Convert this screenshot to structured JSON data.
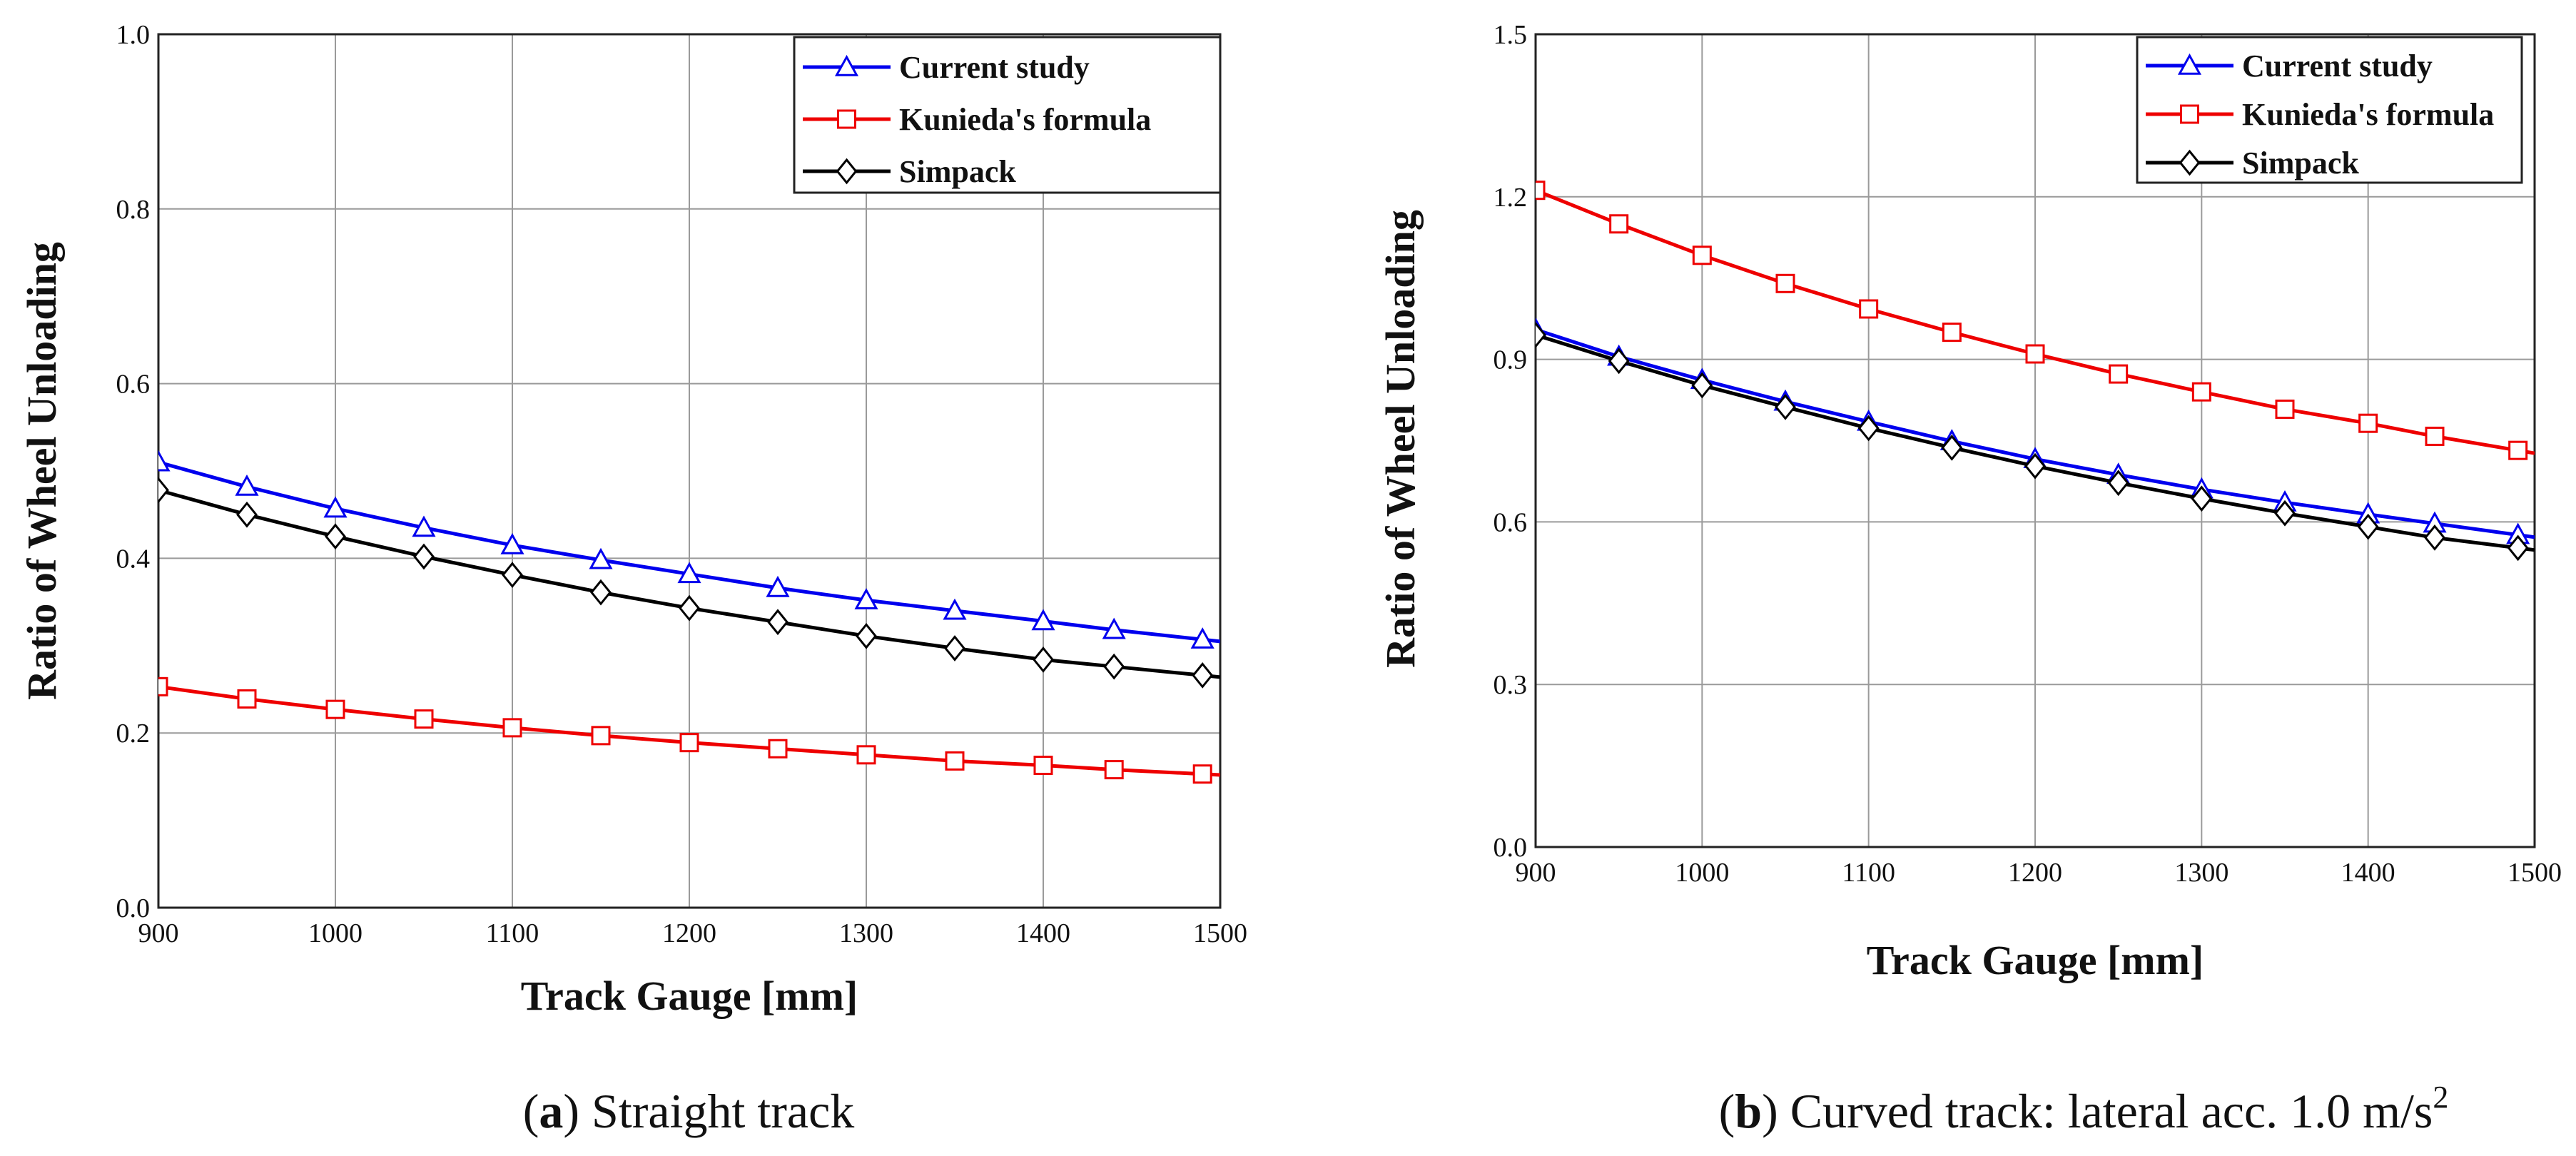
{
  "chart_data": [
    {
      "type": "line",
      "caption": {
        "letter": "a",
        "text": "Straight track"
      },
      "xlabel": "Track Gauge [mm]",
      "ylabel": "Ratio of Wheel Unloading",
      "xlim": [
        900,
        1500
      ],
      "ylim": [
        0.0,
        1.0
      ],
      "xticks": [
        900,
        1000,
        1100,
        1200,
        1300,
        1400,
        1500
      ],
      "yticks": [
        0.0,
        0.2,
        0.4,
        0.6,
        0.8,
        1.0
      ],
      "ytick_labels": [
        "0.0",
        "0.2",
        "0.4",
        "0.6",
        "0.8",
        "1.0"
      ],
      "grid": true,
      "legend_position": "top-right",
      "x": [
        900,
        950,
        1000,
        1050,
        1100,
        1150,
        1200,
        1250,
        1300,
        1350,
        1400,
        1440,
        1490
      ],
      "series": [
        {
          "name": "Current study",
          "color": "#0000ee",
          "marker": "triangle",
          "values": [
            0.51,
            0.482,
            0.457,
            0.435,
            0.415,
            0.398,
            0.382,
            0.366,
            0.352,
            0.34,
            0.328,
            0.318,
            0.307
          ]
        },
        {
          "name": "Kunieda's formula",
          "color": "#ee0000",
          "marker": "square",
          "values": [
            0.253,
            0.239,
            0.227,
            0.216,
            0.206,
            0.197,
            0.189,
            0.182,
            0.175,
            0.168,
            0.163,
            0.158,
            0.153
          ]
        },
        {
          "name": "Simpack",
          "color": "#000000",
          "marker": "diamond",
          "values": [
            0.478,
            0.45,
            0.425,
            0.402,
            0.381,
            0.361,
            0.343,
            0.327,
            0.311,
            0.297,
            0.284,
            0.276,
            0.266
          ]
        }
      ]
    },
    {
      "type": "line",
      "caption": {
        "letter": "b",
        "text": "Curved track: lateral acc. 1.0 m/s",
        "superscript": "2"
      },
      "xlabel": "Track Gauge [mm]",
      "ylabel": "Ratio of Wheel Unloading",
      "xlim": [
        900,
        1500
      ],
      "ylim": [
        0.0,
        1.5
      ],
      "xticks": [
        900,
        1000,
        1100,
        1200,
        1300,
        1400,
        1500
      ],
      "yticks": [
        0.0,
        0.3,
        0.6,
        0.9,
        1.2,
        1.5
      ],
      "ytick_labels": [
        "0.0",
        "0.3",
        "0.6",
        "0.9",
        "1.2",
        "1.5"
      ],
      "grid": true,
      "legend_position": "top-right",
      "x": [
        900,
        950,
        1000,
        1050,
        1100,
        1150,
        1200,
        1250,
        1300,
        1350,
        1400,
        1440,
        1490
      ],
      "series": [
        {
          "name": "Current study",
          "color": "#0000ee",
          "marker": "triangle",
          "values": [
            0.955,
            0.905,
            0.862,
            0.822,
            0.785,
            0.749,
            0.716,
            0.687,
            0.66,
            0.636,
            0.614,
            0.597,
            0.576
          ]
        },
        {
          "name": "Kunieda's formula",
          "color": "#ee0000",
          "marker": "square",
          "values": [
            1.212,
            1.15,
            1.092,
            1.04,
            0.993,
            0.95,
            0.91,
            0.873,
            0.84,
            0.808,
            0.782,
            0.758,
            0.732
          ]
        },
        {
          "name": "Simpack",
          "color": "#000000",
          "marker": "diamond",
          "values": [
            0.945,
            0.897,
            0.852,
            0.812,
            0.773,
            0.737,
            0.703,
            0.672,
            0.643,
            0.616,
            0.591,
            0.571,
            0.552
          ]
        }
      ]
    }
  ]
}
